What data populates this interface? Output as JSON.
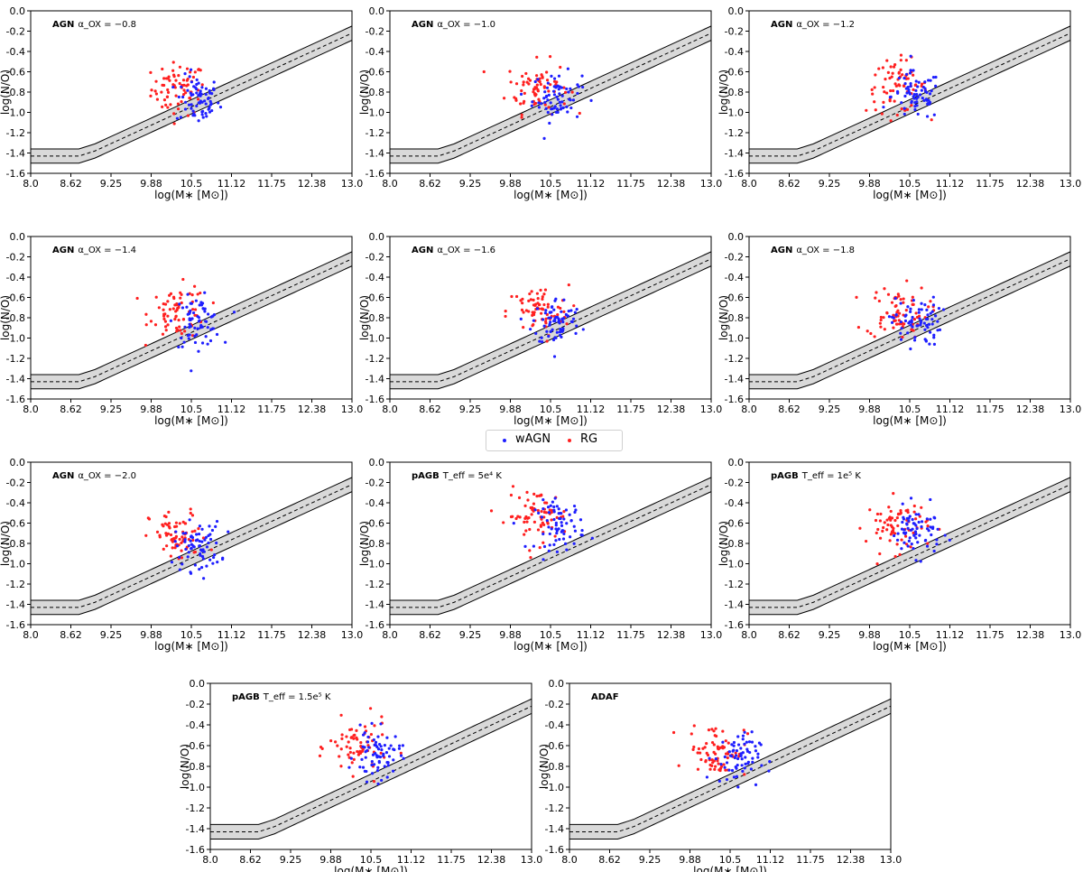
{
  "legend": {
    "entries": [
      {
        "label": "wAGN",
        "color": "#1f1fff"
      },
      {
        "label": "RG",
        "color": "#ff2020"
      }
    ]
  },
  "colors": {
    "wAGN": "#1f1fff",
    "RG": "#ff2020",
    "band": "#d9d9d9"
  },
  "chart_data": [
    {
      "type": "scatter",
      "title": "AGN",
      "title_suffix": "α_OX = −0.8",
      "xlabel": "log(M∗ [M⊙])",
      "ylabel": "log(N/O)",
      "xlim": [
        8.0,
        13.0
      ],
      "ylim": [
        -1.6,
        0.0
      ],
      "xticks": [
        "8.0",
        "8.62",
        "9.25",
        "9.88",
        "10.5",
        "11.12",
        "11.75",
        "12.38",
        "13.0"
      ],
      "yticks": [
        "0.0",
        "-0.2",
        "-0.4",
        "-0.6",
        "-0.8",
        "-1.0",
        "-1.2",
        "-1.4",
        "-1.6"
      ],
      "rg_center": [
        10.3,
        -0.77
      ],
      "wagn_center": [
        10.6,
        -0.88
      ],
      "x_spread": 0.28
    },
    {
      "type": "scatter",
      "title": "AGN",
      "title_suffix": "α_OX = −1.0",
      "xlabel": "log(M∗ [M⊙])",
      "ylabel": "log(N/O)",
      "xlim": [
        8.0,
        13.0
      ],
      "ylim": [
        -1.6,
        0.0
      ],
      "xticks": [
        "8.0",
        "8.62",
        "9.25",
        "9.88",
        "10.5",
        "11.12",
        "11.75",
        "12.38",
        "13.0"
      ],
      "yticks": [
        "0.0",
        "-0.2",
        "-0.4",
        "-0.6",
        "-0.8",
        "-1.0",
        "-1.2",
        "-1.4",
        "-1.6"
      ],
      "rg_center": [
        10.3,
        -0.75
      ],
      "wagn_center": [
        10.6,
        -0.85
      ],
      "x_spread": 0.32
    },
    {
      "type": "scatter",
      "title": "AGN",
      "title_suffix": "α_OX = −1.2",
      "xlabel": "log(M∗ [M⊙])",
      "ylabel": "log(N/O)",
      "xlim": [
        8.0,
        13.0
      ],
      "ylim": [
        -1.6,
        0.0
      ],
      "xticks": [
        "8.0",
        "8.62",
        "9.25",
        "9.88",
        "10.5",
        "11.12",
        "11.75",
        "12.38",
        "13.0"
      ],
      "yticks": [
        "0.0",
        "-0.2",
        "-0.4",
        "-0.6",
        "-0.8",
        "-1.0",
        "-1.2",
        "-1.4",
        "-1.6"
      ],
      "rg_center": [
        10.3,
        -0.74
      ],
      "wagn_center": [
        10.6,
        -0.84
      ],
      "x_spread": 0.32
    },
    {
      "type": "scatter",
      "title": "AGN",
      "title_suffix": "α_OX = −1.4",
      "xlabel": "log(M∗ [M⊙])",
      "ylabel": "log(N/O)",
      "xlim": [
        8.0,
        13.0
      ],
      "ylim": [
        -1.6,
        0.0
      ],
      "xticks": [
        "8.0",
        "8.62",
        "9.25",
        "9.88",
        "10.5",
        "11.12",
        "11.75",
        "12.38",
        "13.0"
      ],
      "yticks": [
        "0.0",
        "-0.2",
        "-0.4",
        "-0.6",
        "-0.8",
        "-1.0",
        "-1.2",
        "-1.4",
        "-1.6"
      ],
      "rg_center": [
        10.3,
        -0.74
      ],
      "wagn_center": [
        10.6,
        -0.84
      ],
      "x_spread": 0.3
    },
    {
      "type": "scatter",
      "title": "AGN",
      "title_suffix": "α_OX = −1.6",
      "xlabel": "log(M∗ [M⊙])",
      "ylabel": "log(N/O)",
      "xlim": [
        8.0,
        13.0
      ],
      "ylim": [
        -1.6,
        0.0
      ],
      "xticks": [
        "8.0",
        "8.62",
        "9.25",
        "9.88",
        "10.5",
        "11.12",
        "11.75",
        "12.38",
        "13.0"
      ],
      "yticks": [
        "0.0",
        "-0.2",
        "-0.4",
        "-0.6",
        "-0.8",
        "-1.0",
        "-1.2",
        "-1.4",
        "-1.6"
      ],
      "rg_center": [
        10.3,
        -0.74
      ],
      "wagn_center": [
        10.6,
        -0.84
      ],
      "x_spread": 0.32
    },
    {
      "type": "scatter",
      "title": "AGN",
      "title_suffix": "α_OX = −1.8",
      "xlabel": "log(M∗ [M⊙])",
      "ylabel": "log(N/O)",
      "xlim": [
        8.0,
        13.0
      ],
      "ylim": [
        -1.6,
        0.0
      ],
      "xticks": [
        "8.0",
        "8.62",
        "9.25",
        "9.88",
        "10.5",
        "11.12",
        "11.75",
        "12.38",
        "13.0"
      ],
      "yticks": [
        "0.0",
        "-0.2",
        "-0.4",
        "-0.6",
        "-0.8",
        "-1.0",
        "-1.2",
        "-1.4",
        "-1.6"
      ],
      "rg_center": [
        10.3,
        -0.74
      ],
      "wagn_center": [
        10.6,
        -0.84
      ],
      "x_spread": 0.32
    },
    {
      "type": "scatter",
      "title": "AGN",
      "title_suffix": "α_OX = −2.0",
      "xlabel": "log(M∗ [M⊙])",
      "ylabel": "log(N/O)",
      "xlim": [
        8.0,
        13.0
      ],
      "ylim": [
        -1.6,
        0.0
      ],
      "xticks": [
        "8.0",
        "8.62",
        "9.25",
        "9.88",
        "10.5",
        "11.12",
        "11.75",
        "12.38",
        "13.0"
      ],
      "yticks": [
        "0.0",
        "-0.2",
        "-0.4",
        "-0.6",
        "-0.8",
        "-1.0",
        "-1.2",
        "-1.4",
        "-1.6"
      ],
      "rg_center": [
        10.3,
        -0.74
      ],
      "wagn_center": [
        10.6,
        -0.83
      ],
      "x_spread": 0.3
    },
    {
      "type": "scatter",
      "title": "pAGB",
      "title_suffix": "T_eff = 5e⁴ K",
      "xlabel": "log(M∗ [M⊙])",
      "ylabel": "log(N/O)",
      "xlim": [
        8.0,
        13.0
      ],
      "ylim": [
        -1.6,
        0.0
      ],
      "xticks": [
        "8.0",
        "8.62",
        "9.25",
        "9.88",
        "10.5",
        "11.12",
        "11.75",
        "12.38",
        "13.0"
      ],
      "yticks": [
        "0.0",
        "-0.2",
        "-0.4",
        "-0.6",
        "-0.8",
        "-1.0",
        "-1.2",
        "-1.4",
        "-1.6"
      ],
      "rg_center": [
        10.3,
        -0.53
      ],
      "wagn_center": [
        10.65,
        -0.62
      ],
      "x_spread": 0.32
    },
    {
      "type": "scatter",
      "title": "pAGB",
      "title_suffix": "T_eff = 1e⁵ K",
      "xlabel": "log(M∗ [M⊙])",
      "ylabel": "log(N/O)",
      "xlim": [
        8.0,
        13.0
      ],
      "ylim": [
        -1.6,
        0.0
      ],
      "xticks": [
        "8.0",
        "8.62",
        "9.25",
        "9.88",
        "10.5",
        "11.12",
        "11.75",
        "12.38",
        "13.0"
      ],
      "yticks": [
        "0.0",
        "-0.2",
        "-0.4",
        "-0.6",
        "-0.8",
        "-1.0",
        "-1.2",
        "-1.4",
        "-1.6"
      ],
      "rg_center": [
        10.3,
        -0.62
      ],
      "wagn_center": [
        10.6,
        -0.68
      ],
      "x_spread": 0.32
    },
    {
      "type": "scatter",
      "title": "pAGB",
      "title_suffix": "T_eff = 1.5e⁵ K",
      "xlabel": "log(M∗ [M⊙])",
      "ylabel": "log(N/O)",
      "xlim": [
        8.0,
        13.0
      ],
      "ylim": [
        -1.6,
        0.0
      ],
      "xticks": [
        "8.0",
        "8.62",
        "9.25",
        "9.88",
        "10.5",
        "11.12",
        "11.75",
        "12.38",
        "13.0"
      ],
      "yticks": [
        "0.0",
        "-0.2",
        "-0.4",
        "-0.6",
        "-0.8",
        "-1.0",
        "-1.2",
        "-1.4",
        "-1.6"
      ],
      "rg_center": [
        10.3,
        -0.62
      ],
      "wagn_center": [
        10.6,
        -0.7
      ],
      "x_spread": 0.3
    },
    {
      "type": "scatter",
      "title": "ADAF",
      "title_suffix": "",
      "xlabel": "log(M∗ [M⊙])",
      "ylabel": "log(N/O)",
      "xlim": [
        8.0,
        13.0
      ],
      "ylim": [
        -1.6,
        0.0
      ],
      "xticks": [
        "8.0",
        "8.62",
        "9.25",
        "9.88",
        "10.5",
        "11.12",
        "11.75",
        "12.38",
        "13.0"
      ],
      "yticks": [
        "0.0",
        "-0.2",
        "-0.4",
        "-0.6",
        "-0.8",
        "-1.0",
        "-1.2",
        "-1.4",
        "-1.6"
      ],
      "rg_center": [
        10.3,
        -0.64
      ],
      "wagn_center": [
        10.6,
        -0.72
      ],
      "x_spread": 0.3
    }
  ],
  "reference_relation": {
    "plateau_y": -1.43,
    "knee_x": 8.75,
    "mid_y_at_knee": -1.43,
    "mid_y_at_9_0": -1.38,
    "mid_y_at_13_0": -0.22,
    "upper_offset": 0.07,
    "lower_offset": 0.07
  }
}
